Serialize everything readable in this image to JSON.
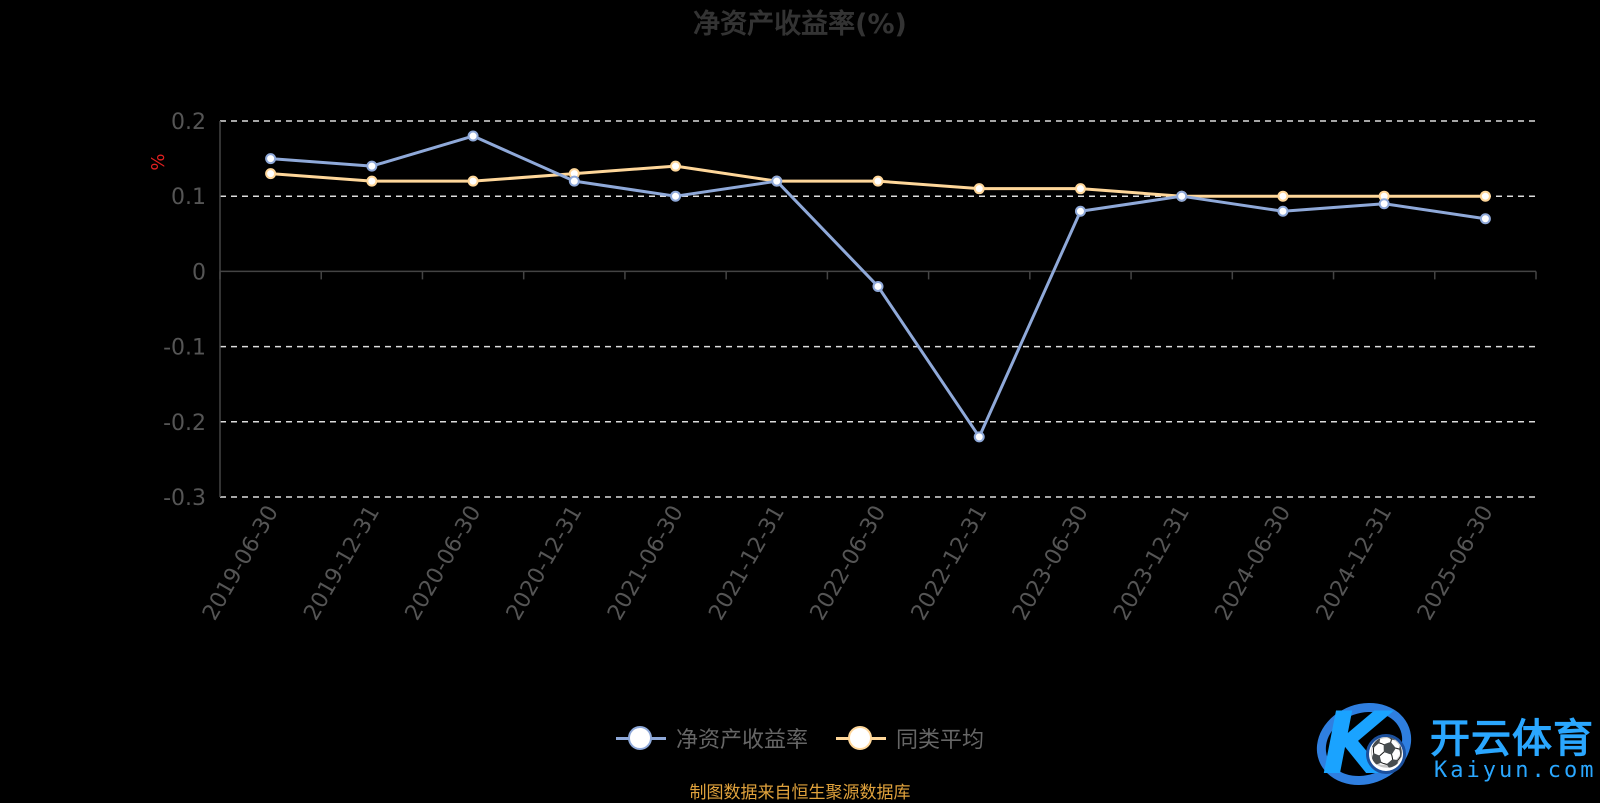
{
  "chart_data": {
    "type": "line",
    "title": "净资产收益率(%)",
    "ylabel": "%",
    "ylim": [
      -0.3,
      0.2
    ],
    "yticks": [
      0.2,
      0.1,
      0,
      -0.1,
      -0.2,
      -0.3
    ],
    "ytick_labels": [
      "0.2",
      "0.1",
      "0",
      "-0.1",
      "-0.2",
      "-0.3"
    ],
    "grid": true,
    "legend_position": "bottom-center",
    "categories": [
      "2019-06-30",
      "2019-12-31",
      "2020-06-30",
      "2020-12-31",
      "2021-06-30",
      "2021-12-31",
      "2022-06-30",
      "2022-12-31",
      "2023-06-30",
      "2023-12-31",
      "2024-06-30",
      "2024-12-31",
      "2025-06-30"
    ],
    "series": [
      {
        "name": "净资产收益率",
        "color": "#8fa9d9",
        "values": [
          0.15,
          0.14,
          0.18,
          0.12,
          0.1,
          0.12,
          -0.02,
          -0.22,
          0.08,
          0.1,
          0.08,
          0.09,
          0.07
        ]
      },
      {
        "name": "同类平均",
        "color": "#ffd79a",
        "values": [
          0.13,
          0.12,
          0.12,
          0.13,
          0.14,
          0.12,
          0.12,
          0.11,
          0.11,
          0.1,
          0.1,
          0.1,
          0.1
        ]
      }
    ],
    "source": "制图数据来自恒生聚源数据库"
  },
  "watermark": {
    "brand_cn": "开云体育",
    "brand_en": "Kaiyun.com",
    "colors": [
      "#1aa3ff",
      "#2f7fe0"
    ]
  }
}
